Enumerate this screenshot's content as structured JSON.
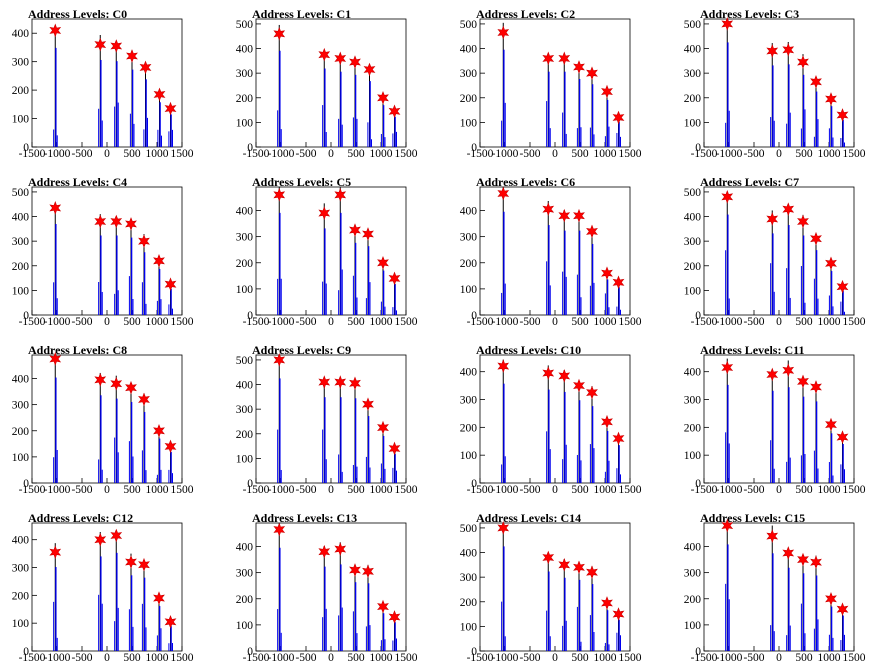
{
  "chart_data": [
    {
      "type": "histogram-with-peaks",
      "title": "Address Levels: C0",
      "ylim": [
        0,
        450
      ],
      "yticks": [
        0,
        100,
        200,
        300,
        400
      ],
      "xlim": [
        -1500,
        1500
      ],
      "xticks": [
        -1500,
        -1000,
        -500,
        0,
        500,
        1000,
        1500
      ],
      "peaks_x": [
        -1035,
        -135,
        185,
        500,
        770,
        1050,
        1270
      ],
      "peaks_y": [
        410,
        360,
        355,
        320,
        280,
        185,
        135
      ]
    },
    {
      "type": "histogram-with-peaks",
      "title": "Address Levels: C1",
      "ylim": [
        0,
        520
      ],
      "yticks": [
        0,
        100,
        200,
        300,
        400,
        500
      ],
      "xlim": [
        -1500,
        1500
      ],
      "xticks": [
        -1500,
        -1000,
        -500,
        0,
        500,
        1000,
        1500
      ],
      "peaks_x": [
        -1035,
        -135,
        185,
        480,
        770,
        1040,
        1270
      ],
      "peaks_y": [
        460,
        375,
        360,
        345,
        315,
        200,
        145
      ]
    },
    {
      "type": "histogram-with-peaks",
      "title": "Address Levels: C2",
      "ylim": [
        0,
        520
      ],
      "yticks": [
        0,
        100,
        200,
        300,
        400,
        500
      ],
      "xlim": [
        -1500,
        1500
      ],
      "xticks": [
        -1500,
        -1000,
        -500,
        0,
        500,
        1000,
        1500
      ],
      "peaks_x": [
        -1035,
        -135,
        185,
        480,
        740,
        1040,
        1270
      ],
      "peaks_y": [
        465,
        360,
        360,
        325,
        300,
        225,
        120
      ]
    },
    {
      "type": "histogram-with-peaks",
      "title": "Address Levels: C3",
      "ylim": [
        0,
        520
      ],
      "yticks": [
        0,
        100,
        200,
        300,
        400,
        500
      ],
      "xlim": [
        -1500,
        1500
      ],
      "xticks": [
        -1500,
        -1000,
        -500,
        0,
        500,
        1000,
        1500
      ],
      "peaks_x": [
        -1035,
        -135,
        185,
        480,
        740,
        1040,
        1270
      ],
      "peaks_y": [
        500,
        390,
        395,
        345,
        265,
        195,
        130
      ]
    },
    {
      "type": "histogram-with-peaks",
      "title": "Address Levels: C4",
      "ylim": [
        0,
        520
      ],
      "yticks": [
        0,
        100,
        200,
        300,
        400,
        500
      ],
      "xlim": [
        -1500,
        1500
      ],
      "xticks": [
        -1500,
        -1000,
        -500,
        0,
        500,
        1000,
        1500
      ],
      "peaks_x": [
        -1035,
        -135,
        185,
        480,
        740,
        1040,
        1270
      ],
      "peaks_y": [
        435,
        380,
        380,
        370,
        300,
        220,
        125
      ]
    },
    {
      "type": "histogram-with-peaks",
      "title": "Address Levels: C5",
      "ylim": [
        0,
        490
      ],
      "yticks": [
        0,
        100,
        200,
        300,
        400
      ],
      "xlim": [
        -1500,
        1500
      ],
      "xticks": [
        -1500,
        -1000,
        -500,
        0,
        500,
        1000,
        1500
      ],
      "peaks_x": [
        -1035,
        -135,
        185,
        480,
        740,
        1040,
        1270
      ],
      "peaks_y": [
        460,
        390,
        460,
        325,
        310,
        200,
        140
      ]
    },
    {
      "type": "histogram-with-peaks",
      "title": "Address Levels: C6",
      "ylim": [
        0,
        490
      ],
      "yticks": [
        0,
        100,
        200,
        300,
        400
      ],
      "xlim": [
        -1500,
        1500
      ],
      "xticks": [
        -1500,
        -1000,
        -500,
        0,
        500,
        1000,
        1500
      ],
      "peaks_x": [
        -1035,
        -135,
        185,
        480,
        740,
        1040,
        1270
      ],
      "peaks_y": [
        465,
        405,
        380,
        380,
        320,
        160,
        125
      ]
    },
    {
      "type": "histogram-with-peaks",
      "title": "Address Levels: C7",
      "ylim": [
        0,
        520
      ],
      "yticks": [
        0,
        100,
        200,
        300,
        400,
        500
      ],
      "xlim": [
        -1500,
        1500
      ],
      "xticks": [
        -1500,
        -1000,
        -500,
        0,
        500,
        1000,
        1500
      ],
      "peaks_x": [
        -1035,
        -135,
        185,
        480,
        740,
        1040,
        1270
      ],
      "peaks_y": [
        480,
        390,
        430,
        380,
        310,
        210,
        115
      ]
    },
    {
      "type": "histogram-with-peaks",
      "title": "Address Levels: C8",
      "ylim": [
        0,
        490
      ],
      "yticks": [
        0,
        100,
        200,
        300,
        400
      ],
      "xlim": [
        -1500,
        1500
      ],
      "xticks": [
        -1500,
        -1000,
        -500,
        0,
        500,
        1000,
        1500
      ],
      "peaks_x": [
        -1035,
        -135,
        185,
        480,
        740,
        1040,
        1270
      ],
      "peaks_y": [
        475,
        395,
        380,
        365,
        320,
        200,
        140
      ]
    },
    {
      "type": "histogram-with-peaks",
      "title": "Address Levels: C9",
      "ylim": [
        0,
        520
      ],
      "yticks": [
        0,
        100,
        200,
        300,
        400,
        500
      ],
      "xlim": [
        -1500,
        1500
      ],
      "xticks": [
        -1500,
        -1000,
        -500,
        0,
        500,
        1000,
        1500
      ],
      "peaks_x": [
        -1035,
        -135,
        185,
        480,
        740,
        1040,
        1270
      ],
      "peaks_y": [
        500,
        410,
        410,
        405,
        320,
        225,
        140
      ]
    },
    {
      "type": "histogram-with-peaks",
      "title": "Address Levels: C10",
      "ylim": [
        0,
        460
      ],
      "yticks": [
        0,
        100,
        200,
        300,
        400
      ],
      "xlim": [
        -1500,
        1500
      ],
      "xticks": [
        -1500,
        -1000,
        -500,
        0,
        500,
        1000,
        1500
      ],
      "peaks_x": [
        -1035,
        -135,
        185,
        480,
        740,
        1040,
        1270
      ],
      "peaks_y": [
        420,
        395,
        385,
        350,
        325,
        220,
        160
      ]
    },
    {
      "type": "histogram-with-peaks",
      "title": "Address Levels: C11",
      "ylim": [
        0,
        460
      ],
      "yticks": [
        0,
        100,
        200,
        300,
        400
      ],
      "xlim": [
        -1500,
        1500
      ],
      "xticks": [
        -1500,
        -1000,
        -500,
        0,
        500,
        1000,
        1500
      ],
      "peaks_x": [
        -1035,
        -135,
        185,
        480,
        740,
        1040,
        1270
      ],
      "peaks_y": [
        415,
        390,
        405,
        365,
        345,
        210,
        165
      ]
    },
    {
      "type": "histogram-with-peaks",
      "title": "Address Levels: C12",
      "ylim": [
        0,
        460
      ],
      "yticks": [
        0,
        100,
        200,
        300,
        400
      ],
      "xlim": [
        -1500,
        1500
      ],
      "xticks": [
        -1500,
        -1000,
        -500,
        0,
        500,
        1000,
        1500
      ],
      "peaks_x": [
        -1035,
        -135,
        185,
        480,
        740,
        1040,
        1270
      ],
      "peaks_y": [
        355,
        400,
        415,
        320,
        310,
        190,
        105
      ]
    },
    {
      "type": "histogram-with-peaks",
      "title": "Address Levels: C13",
      "ylim": [
        0,
        490
      ],
      "yticks": [
        0,
        100,
        200,
        300,
        400
      ],
      "xlim": [
        -1500,
        1500
      ],
      "xticks": [
        -1500,
        -1000,
        -500,
        0,
        500,
        1000,
        1500
      ],
      "peaks_x": [
        -1035,
        -135,
        185,
        480,
        740,
        1040,
        1270
      ],
      "peaks_y": [
        465,
        380,
        390,
        310,
        305,
        170,
        130
      ]
    },
    {
      "type": "histogram-with-peaks",
      "title": "Address Levels: C14",
      "ylim": [
        0,
        520
      ],
      "yticks": [
        0,
        100,
        200,
        300,
        400,
        500
      ],
      "xlim": [
        -1500,
        1500
      ],
      "xticks": [
        -1500,
        -1000,
        -500,
        0,
        500,
        1000,
        1500
      ],
      "peaks_x": [
        -1035,
        -135,
        185,
        480,
        740,
        1040,
        1270
      ],
      "peaks_y": [
        500,
        380,
        350,
        340,
        320,
        195,
        150
      ]
    },
    {
      "type": "histogram-with-peaks",
      "title": "Address Levels: C15",
      "ylim": [
        0,
        490
      ],
      "yticks": [
        0,
        100,
        200,
        300,
        400
      ],
      "xlim": [
        -1500,
        1500
      ],
      "xticks": [
        -1500,
        -1000,
        -500,
        0,
        500,
        1000,
        1500
      ],
      "peaks_x": [
        -1035,
        -135,
        185,
        480,
        740,
        1040,
        1270
      ],
      "peaks_y": [
        480,
        440,
        375,
        350,
        340,
        200,
        160
      ]
    }
  ],
  "colors": {
    "histogram": "#0000ee",
    "histogram_dark": "#000000",
    "marker_fill": "#ff0000",
    "marker_stroke": "#cc0000",
    "axis": "#000000"
  },
  "marker_icon": "red-star-marker"
}
